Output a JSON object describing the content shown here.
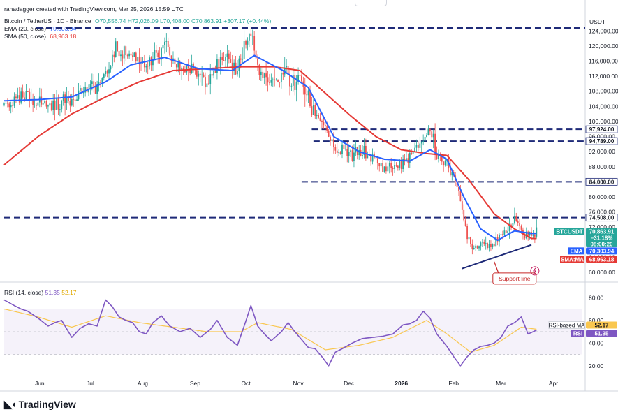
{
  "header": {
    "creator": "ranadagger created with TradingView.com, Mar 25, 2026 15:59 UTC",
    "symbol": "Bitcoin / TetherUS · 1D · Binance",
    "ohlc": "O70,556.74 H72,026.09 L70,408.00 C70,863.91 +307.17 (+0.44%)",
    "ema_label": "EMA (20, close)",
    "ema_value": "70,303.94",
    "sma_label": "SMA (50, close)",
    "sma_value": "68,963.18",
    "rsi_label": "RSI (14, close)",
    "rsi_value": "51.35",
    "rsi_ma_value": "52.17",
    "currency": "USDT"
  },
  "colors": {
    "up": "#26a69a",
    "down": "#ef5350",
    "ema": "#2962ff",
    "sma": "#e53935",
    "rsi": "#7e57c2",
    "rsi_ma": "#f9c74f",
    "level_line": "#1e2a78"
  },
  "annotations": {
    "support_label": "Support line"
  },
  "brand": "TradingView",
  "chart_data": [
    {
      "type": "candlestick",
      "title": "Bitcoin / TetherUS · 1D · Binance",
      "ylim": [
        56000,
        128000
      ],
      "y_ticks": [
        "124,000.00",
        "120,000.00",
        "116,000.00",
        "112,000.00",
        "108,000.00",
        "104,000.00",
        "100,000.00",
        "96,000.00",
        "92,000.00",
        "88,000.00",
        "84,000.00",
        "80,000.00",
        "76,000.00",
        "72,000.00",
        "68,000.00",
        "64,000.00",
        "60,000.00"
      ],
      "x_ticks": [
        "Jun",
        "Jul",
        "Aug",
        "Sep",
        "Oct",
        "Nov",
        "Dec",
        "2026",
        "Feb",
        "Mar",
        "Apr"
      ],
      "x_tick_days": [
        21,
        51,
        82,
        113,
        143,
        174,
        204,
        235,
        266,
        294,
        325
      ],
      "last_day": 315,
      "close_path": [
        [
          0,
          104500
        ],
        [
          8,
          105500
        ],
        [
          15,
          106000
        ],
        [
          22,
          105000
        ],
        [
          30,
          104000
        ],
        [
          38,
          106000
        ],
        [
          46,
          108000
        ],
        [
          54,
          109000
        ],
        [
          60,
          112000
        ],
        [
          66,
          119000
        ],
        [
          72,
          118000
        ],
        [
          78,
          117000
        ],
        [
          85,
          115000
        ],
        [
          90,
          116500
        ],
        [
          96,
          119500
        ],
        [
          102,
          114500
        ],
        [
          108,
          114000
        ],
        [
          114,
          113000
        ],
        [
          120,
          111500
        ],
        [
          126,
          115000
        ],
        [
          132,
          115500
        ],
        [
          138,
          114500
        ],
        [
          142,
          120000
        ],
        [
          146,
          123500
        ],
        [
          150,
          114000
        ],
        [
          154,
          111000
        ],
        [
          160,
          109500
        ],
        [
          166,
          114000
        ],
        [
          170,
          110000
        ],
        [
          176,
          111000
        ],
        [
          182,
          103000
        ],
        [
          188,
          100500
        ],
        [
          192,
          96500
        ],
        [
          196,
          91000
        ],
        [
          200,
          92500
        ],
        [
          206,
          90500
        ],
        [
          212,
          92000
        ],
        [
          218,
          90000
        ],
        [
          224,
          87500
        ],
        [
          230,
          88000
        ],
        [
          236,
          89000
        ],
        [
          242,
          91500
        ],
        [
          248,
          95500
        ],
        [
          252,
          97924
        ],
        [
          256,
          91500
        ],
        [
          262,
          88500
        ],
        [
          266,
          86500
        ],
        [
          270,
          78000
        ],
        [
          274,
          70000
        ],
        [
          278,
          66500
        ],
        [
          282,
          68000
        ],
        [
          288,
          67500
        ],
        [
          294,
          69000
        ],
        [
          300,
          73000
        ],
        [
          304,
          73500
        ],
        [
          308,
          69000
        ],
        [
          312,
          70000
        ],
        [
          315,
          70864
        ]
      ],
      "ema": {
        "name": "EMA",
        "label": "70,303.94",
        "value": 70303.94,
        "path": [
          [
            0,
            105500
          ],
          [
            20,
            105800
          ],
          [
            40,
            106500
          ],
          [
            60,
            110500
          ],
          [
            75,
            115000
          ],
          [
            95,
            117000
          ],
          [
            115,
            114000
          ],
          [
            135,
            113500
          ],
          [
            148,
            117500
          ],
          [
            165,
            113500
          ],
          [
            180,
            109000
          ],
          [
            195,
            96000
          ],
          [
            210,
            92000
          ],
          [
            225,
            90000
          ],
          [
            240,
            89500
          ],
          [
            252,
            92500
          ],
          [
            262,
            90000
          ],
          [
            272,
            80000
          ],
          [
            282,
            71500
          ],
          [
            292,
            68500
          ],
          [
            302,
            71000
          ],
          [
            312,
            70300
          ],
          [
            315,
            70304
          ]
        ]
      },
      "sma": {
        "name": "SMA",
        "label": "68,963.18",
        "value": 68963.18,
        "path": [
          [
            0,
            88500
          ],
          [
            20,
            96000
          ],
          [
            40,
            102000
          ],
          [
            60,
            106500
          ],
          [
            80,
            110500
          ],
          [
            100,
            113500
          ],
          [
            120,
            114000
          ],
          [
            140,
            114500
          ],
          [
            160,
            114500
          ],
          [
            175,
            113500
          ],
          [
            190,
            107500
          ],
          [
            205,
            101500
          ],
          [
            220,
            96000
          ],
          [
            235,
            92500
          ],
          [
            250,
            91500
          ],
          [
            262,
            91000
          ],
          [
            275,
            84500
          ],
          [
            290,
            75500
          ],
          [
            302,
            71500
          ],
          [
            312,
            69000
          ],
          [
            315,
            68963
          ]
        ]
      },
      "levels": [
        {
          "label": "",
          "value": 124800,
          "from_day": 19
        },
        {
          "label": "97,924.00",
          "value": 97924,
          "from_day": 182
        },
        {
          "label": "94,789.00",
          "value": 94789,
          "from_day": 183
        },
        {
          "label": "84,000.00",
          "value": 84000,
          "from_day": 176
        },
        {
          "label": "74,508.00",
          "value": 74508,
          "from_day": 0
        }
      ],
      "price_tag": {
        "label": "BTCUSDT",
        "value": 70863.91,
        "text": "70,863.91",
        "change": "−31.18%",
        "countdown": "08:00:20"
      },
      "ema_tag": {
        "label": "EMA",
        "text": "70,303.94"
      },
      "sma_tag": {
        "label": "SMA:MA",
        "text": "68,963.18"
      },
      "support_line": {
        "label": "Support line",
        "from": [
          271,
          61000
        ],
        "to": [
          312,
          67300
        ]
      }
    },
    {
      "type": "line",
      "title": "RSI (14, close)",
      "ylim": [
        10,
        90
      ],
      "y_ticks": [
        "80.00",
        "60.00",
        "40.00",
        "20.00"
      ],
      "band": [
        30,
        70
      ],
      "series": [
        {
          "name": "RSI",
          "label": "51.35",
          "value": 51.35,
          "path": [
            [
              0,
              78
            ],
            [
              6,
              73
            ],
            [
              10,
              70
            ],
            [
              14,
              68
            ],
            [
              20,
              62
            ],
            [
              26,
              55
            ],
            [
              30,
              58
            ],
            [
              34,
              60
            ],
            [
              40,
              45
            ],
            [
              45,
              53
            ],
            [
              50,
              57
            ],
            [
              55,
              55
            ],
            [
              60,
              78
            ],
            [
              64,
              72
            ],
            [
              68,
              63
            ],
            [
              72,
              60
            ],
            [
              76,
              58
            ],
            [
              80,
              50
            ],
            [
              84,
              48
            ],
            [
              88,
              58
            ],
            [
              93,
              64
            ],
            [
              98,
              55
            ],
            [
              104,
              50
            ],
            [
              110,
              53
            ],
            [
              116,
              45
            ],
            [
              122,
              52
            ],
            [
              126,
              60
            ],
            [
              132,
              45
            ],
            [
              138,
              38
            ],
            [
              142,
              55
            ],
            [
              146,
              73
            ],
            [
              150,
              55
            ],
            [
              154,
              48
            ],
            [
              158,
              42
            ],
            [
              164,
              50
            ],
            [
              168,
              58
            ],
            [
              172,
              50
            ],
            [
              176,
              43
            ],
            [
              180,
              36
            ],
            [
              184,
              35
            ],
            [
              188,
              28
            ],
            [
              192,
              20
            ],
            [
              196,
              32
            ],
            [
              200,
              35
            ],
            [
              206,
              40
            ],
            [
              212,
              44
            ],
            [
              218,
              45
            ],
            [
              224,
              46
            ],
            [
              230,
              48
            ],
            [
              236,
              56
            ],
            [
              240,
              57
            ],
            [
              244,
              60
            ],
            [
              248,
              68
            ],
            [
              252,
              62
            ],
            [
              256,
              48
            ],
            [
              262,
              37
            ],
            [
              266,
              28
            ],
            [
              270,
              20
            ],
            [
              274,
              28
            ],
            [
              278,
              34
            ],
            [
              282,
              37
            ],
            [
              286,
              38
            ],
            [
              290,
              40
            ],
            [
              294,
              45
            ],
            [
              298,
              55
            ],
            [
              302,
              58
            ],
            [
              306,
              63
            ],
            [
              310,
              48
            ],
            [
              315,
              51.35
            ]
          ]
        },
        {
          "name": "RSI-based MA",
          "label": "52.17",
          "value": 52.17,
          "path": [
            [
              0,
              70
            ],
            [
              20,
              63
            ],
            [
              40,
              54
            ],
            [
              60,
              64
            ],
            [
              80,
              58
            ],
            [
              100,
              54
            ],
            [
              120,
              50
            ],
            [
              140,
              50
            ],
            [
              150,
              58
            ],
            [
              170,
              52
            ],
            [
              190,
              34
            ],
            [
              210,
              38
            ],
            [
              230,
              45
            ],
            [
              250,
              60
            ],
            [
              262,
              48
            ],
            [
              276,
              32
            ],
            [
              290,
              38
            ],
            [
              306,
              54
            ],
            [
              315,
              52.17
            ]
          ]
        }
      ]
    }
  ]
}
